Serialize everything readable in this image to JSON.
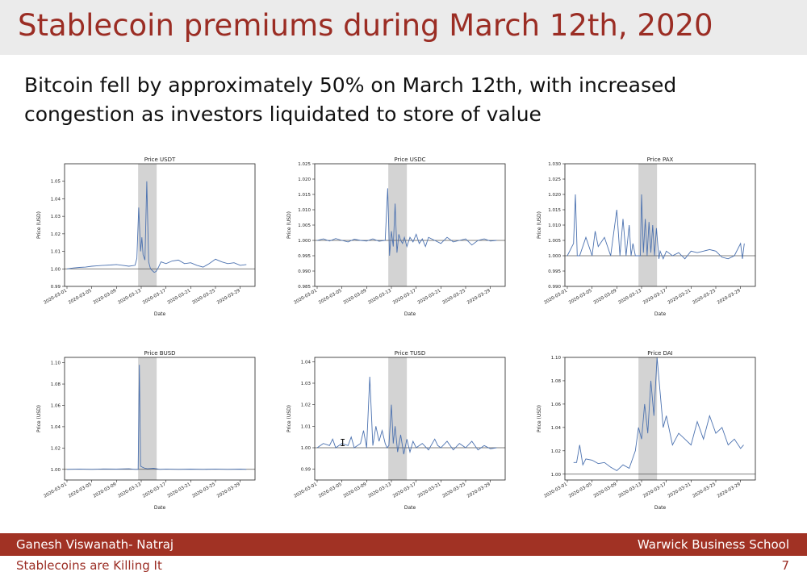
{
  "slide": {
    "title": "Stablecoin premiums during March 12th, 2020",
    "bullet": "Bitcoin fell by approximately 50% on March 12th, with increased congestion as investors liquidated to store of value",
    "footer_author": "Ganesh Viswanath- Natraj",
    "footer_school": "Warwick Business School",
    "footer_topic": "Stablecoins are Killing It",
    "page_number": "7"
  },
  "colors": {
    "accent": "#9b2d24",
    "footer_bg": "#a13224",
    "line": "#4c72b0",
    "shade": "#d3d3d3"
  },
  "chart_data": [
    {
      "type": "line",
      "title": "Price USDT",
      "xlabel": "Date",
      "ylabel": "Price (USD)",
      "ylim": [
        0.99,
        1.06
      ],
      "yticks": [
        "0.99",
        "1.00",
        "1.01",
        "1.02",
        "1.03",
        "1.04",
        "1.05"
      ],
      "xdomain": [
        0,
        30
      ],
      "xticks": [
        {
          "v": 0,
          "l": "2020-03-01"
        },
        {
          "v": 4,
          "l": "2020-03-05"
        },
        {
          "v": 8,
          "l": "2020-03-09"
        },
        {
          "v": 12,
          "l": "2020-03-13"
        },
        {
          "v": 16,
          "l": "2020-03-17"
        },
        {
          "v": 20,
          "l": "2020-03-21"
        },
        {
          "v": 24,
          "l": "2020-03-25"
        },
        {
          "v": 28,
          "l": "2020-03-29"
        }
      ],
      "shaded": [
        11.5,
        14.5
      ],
      "baseline": 1.0,
      "series": [
        {
          "name": "USDT",
          "x": [
            0,
            1,
            2,
            3,
            4,
            5,
            6,
            7,
            8,
            9,
            10,
            11,
            11.3,
            11.6,
            11.9,
            12.1,
            12.3,
            12.6,
            12.9,
            13.2,
            13.5,
            13.8,
            14.1,
            14.4,
            14.8,
            15.2,
            16,
            17,
            18,
            19,
            20,
            21,
            22,
            23,
            24,
            25,
            26,
            27,
            28,
            29
          ],
          "y": [
            1.0,
            1.0005,
            1.0008,
            1.001,
            1.0015,
            1.0018,
            1.002,
            1.0022,
            1.0025,
            1.002,
            1.0015,
            1.002,
            1.006,
            1.035,
            1.01,
            1.018,
            1.008,
            1.005,
            1.05,
            1.004,
            1.0,
            0.999,
            0.998,
            0.9985,
            1.001,
            1.004,
            1.003,
            1.0045,
            1.005,
            1.003,
            1.0035,
            1.002,
            1.001,
            1.003,
            1.0055,
            1.004,
            1.003,
            1.0035,
            1.002,
            1.0025
          ]
        }
      ]
    },
    {
      "type": "line",
      "title": "Price USDC",
      "xlabel": "Date",
      "ylabel": "Price (USD)",
      "ylim": [
        0.985,
        1.025
      ],
      "yticks": [
        "0.985",
        "0.990",
        "0.995",
        "1.000",
        "1.005",
        "1.010",
        "1.015",
        "1.020",
        "1.025"
      ],
      "xdomain": [
        0,
        30
      ],
      "xticks": [
        {
          "v": 0,
          "l": "2020-03-01"
        },
        {
          "v": 4,
          "l": "2020-03-05"
        },
        {
          "v": 8,
          "l": "2020-03-09"
        },
        {
          "v": 12,
          "l": "2020-03-13"
        },
        {
          "v": 16,
          "l": "2020-03-17"
        },
        {
          "v": 20,
          "l": "2020-03-21"
        },
        {
          "v": 24,
          "l": "2020-03-25"
        },
        {
          "v": 28,
          "l": "2020-03-29"
        }
      ],
      "shaded": [
        11.5,
        14.5
      ],
      "baseline": 1.0,
      "series": [
        {
          "name": "USDC",
          "x": [
            0,
            1,
            2,
            3,
            4,
            5,
            6,
            7,
            8,
            9,
            10,
            11,
            11.4,
            11.7,
            12,
            12.3,
            12.6,
            12.9,
            13.2,
            13.5,
            13.8,
            14.1,
            14.5,
            15,
            15.5,
            16,
            16.5,
            17,
            17.5,
            18,
            19,
            20,
            21,
            22,
            23,
            24,
            25,
            26,
            27,
            28,
            29
          ],
          "y": [
            1.0,
            1.0005,
            0.9998,
            1.0006,
            1.0,
            0.9995,
            1.0004,
            1.0,
            0.9998,
            1.0005,
            0.9997,
            1.0,
            1.017,
            0.995,
            1.003,
            0.998,
            1.012,
            0.996,
            1.002,
            1.0,
            0.999,
            1.001,
            0.998,
            1.001,
            0.9995,
            1.002,
            0.999,
            1.0005,
            0.998,
            1.001,
            1.0,
            0.999,
            1.001,
            0.9995,
            1.0,
            1.0005,
            0.9985,
            1.0,
            1.0005,
            0.9998,
            1.0
          ]
        }
      ]
    },
    {
      "type": "line",
      "title": "Price PAX",
      "xlabel": "Date",
      "ylabel": "Price (USD)",
      "ylim": [
        0.99,
        1.03
      ],
      "yticks": [
        "0.990",
        "0.995",
        "1.000",
        "1.005",
        "1.010",
        "1.015",
        "1.020",
        "1.025",
        "1.030"
      ],
      "xdomain": [
        0,
        30
      ],
      "xticks": [
        {
          "v": 0,
          "l": "2020-03-01"
        },
        {
          "v": 4,
          "l": "2020-03-05"
        },
        {
          "v": 8,
          "l": "2020-03-09"
        },
        {
          "v": 12,
          "l": "2020-03-13"
        },
        {
          "v": 16,
          "l": "2020-03-17"
        },
        {
          "v": 20,
          "l": "2020-03-21"
        },
        {
          "v": 24,
          "l": "2020-03-25"
        },
        {
          "v": 28,
          "l": "2020-03-29"
        }
      ],
      "shaded": [
        11.5,
        14.5
      ],
      "baseline": 1.0,
      "series": [
        {
          "name": "PAX",
          "x": [
            0,
            1,
            1.3,
            1.6,
            2,
            3,
            4,
            4.5,
            5,
            6,
            7,
            8,
            8.5,
            9,
            9.5,
            10,
            10.3,
            10.6,
            11,
            11.8,
            12,
            12.3,
            12.6,
            12.9,
            13.2,
            13.5,
            13.8,
            14.1,
            14.4,
            14.8,
            15,
            15.5,
            16,
            17,
            18,
            19,
            20,
            21,
            22,
            23,
            24,
            25,
            26,
            27,
            28,
            28.3,
            28.6
          ],
          "y": [
            1.0,
            1.004,
            1.02,
            1.0,
            1.0,
            1.006,
            1.0,
            1.008,
            1.003,
            1.006,
            1.0,
            1.015,
            1.0,
            1.012,
            1.0,
            1.01,
            1.0,
            1.004,
            1.0,
            1.0,
            1.02,
            1.001,
            1.012,
            1.0,
            1.011,
            1.001,
            1.01,
            1.0,
            1.009,
            0.999,
            1.0015,
            0.999,
            1.0015,
            1.0,
            1.001,
            0.999,
            1.0015,
            1.001,
            1.0015,
            1.002,
            1.0015,
            0.9995,
            0.999,
            1.0,
            1.004,
            0.999,
            1.004
          ]
        }
      ]
    },
    {
      "type": "line",
      "title": "Price BUSD",
      "xlabel": "Date",
      "ylabel": "Price (USD)",
      "ylim": [
        0.99,
        1.105
      ],
      "yticks": [
        "1.00",
        "1.02",
        "1.04",
        "1.06",
        "1.08",
        "1.10"
      ],
      "xdomain": [
        0,
        30
      ],
      "xticks": [
        {
          "v": 0,
          "l": "2020-03-01"
        },
        {
          "v": 4,
          "l": "2020-03-05"
        },
        {
          "v": 8,
          "l": "2020-03-09"
        },
        {
          "v": 12,
          "l": "2020-03-13"
        },
        {
          "v": 16,
          "l": "2020-03-17"
        },
        {
          "v": 20,
          "l": "2020-03-21"
        },
        {
          "v": 24,
          "l": "2020-03-25"
        },
        {
          "v": 28,
          "l": "2020-03-29"
        }
      ],
      "shaded": [
        11.5,
        14.5
      ],
      "baseline": 1.0,
      "series": [
        {
          "name": "BUSD",
          "x": [
            0,
            2,
            4,
            6,
            8,
            10,
            11,
            11.5,
            11.7,
            11.9,
            12.2,
            12.6,
            13,
            14,
            15,
            16,
            18,
            20,
            22,
            24,
            26,
            28,
            29
          ],
          "y": [
            1.0,
            1.0003,
            1.0,
            1.0004,
            1.0002,
            1.0005,
            1.0,
            1.0,
            1.098,
            1.003,
            1.002,
            1.001,
            1.0005,
            1.001,
            1.0,
            1.0003,
            1.0,
            1.0002,
            1.0,
            1.0003,
            1.0,
            1.0002,
            1.0
          ]
        }
      ]
    },
    {
      "type": "line",
      "title": "Price TUSD",
      "xlabel": "Date",
      "ylabel": "Price (USD)",
      "ylim": [
        0.985,
        1.042
      ],
      "yticks": [
        "0.99",
        "1.00",
        "1.01",
        "1.02",
        "1.03",
        "1.04"
      ],
      "xdomain": [
        0,
        30
      ],
      "xticks": [
        {
          "v": 0,
          "l": "2020-03-01"
        },
        {
          "v": 4,
          "l": "2020-03-05"
        },
        {
          "v": 8,
          "l": "2020-03-09"
        },
        {
          "v": 12,
          "l": "2020-03-13"
        },
        {
          "v": 16,
          "l": "2020-03-17"
        },
        {
          "v": 20,
          "l": "2020-03-21"
        },
        {
          "v": 24,
          "l": "2020-03-25"
        },
        {
          "v": 28,
          "l": "2020-03-29"
        }
      ],
      "shaded": [
        11.5,
        14.5
      ],
      "baseline": 1.0,
      "series": [
        {
          "name": "TUSD",
          "x": [
            0,
            1,
            2,
            2.5,
            3,
            4,
            5,
            5.5,
            6,
            7,
            7.5,
            8,
            8.5,
            9,
            9.5,
            10,
            10.5,
            11,
            11.3,
            11.6,
            12,
            12.3,
            12.6,
            13,
            13.5,
            14,
            14.5,
            15,
            15.5,
            16,
            17,
            18,
            19,
            19.5,
            20,
            21,
            22,
            23,
            24,
            25,
            26,
            27,
            28,
            29
          ],
          "y": [
            1.0,
            1.002,
            1.001,
            1.004,
            1.0,
            1.002,
            1.001,
            1.005,
            1.0,
            1.002,
            1.008,
            1.0,
            1.033,
            1.001,
            1.01,
            1.003,
            1.008,
            1.002,
            1.0,
            1.001,
            1.02,
            1.002,
            1.01,
            0.998,
            1.006,
            0.997,
            1.004,
            0.998,
            1.003,
            1.0,
            1.002,
            0.999,
            1.004,
            1.001,
            1.0,
            1.003,
            0.999,
            1.002,
            1.0,
            1.003,
            0.999,
            1.001,
            0.9995,
            1.0
          ]
        }
      ]
    },
    {
      "type": "line",
      "title": "Price DAI",
      "xlabel": "Date",
      "ylabel": "Price (USD)",
      "ylim": [
        0.995,
        1.1
      ],
      "yticks": [
        "1.00",
        "1.02",
        "1.04",
        "1.06",
        "1.08",
        "1.10"
      ],
      "xdomain": [
        0,
        30
      ],
      "xticks": [
        {
          "v": 0,
          "l": "2020-03-01"
        },
        {
          "v": 4,
          "l": "2020-03-05"
        },
        {
          "v": 8,
          "l": "2020-03-09"
        },
        {
          "v": 12,
          "l": "2020-03-13"
        },
        {
          "v": 16,
          "l": "2020-03-17"
        },
        {
          "v": 20,
          "l": "2020-03-21"
        },
        {
          "v": 24,
          "l": "2020-03-25"
        },
        {
          "v": 28,
          "l": "2020-03-29"
        }
      ],
      "shaded": [
        11.5,
        14.5
      ],
      "baseline": 1.0,
      "series": [
        {
          "name": "DAI",
          "x": [
            1,
            1.5,
            2,
            2.5,
            3,
            4,
            5,
            6,
            7,
            8,
            9,
            10,
            11,
            11.5,
            12,
            12.5,
            13,
            13.5,
            14,
            14.5,
            15,
            15.5,
            16,
            17,
            18,
            19,
            20,
            21,
            22,
            23,
            24,
            25,
            26,
            27,
            28,
            28.5
          ],
          "y": [
            1.01,
            1.01,
            1.025,
            1.008,
            1.013,
            1.012,
            1.009,
            1.01,
            1.006,
            1.003,
            1.008,
            1.005,
            1.02,
            1.04,
            1.03,
            1.06,
            1.035,
            1.08,
            1.05,
            1.1,
            1.07,
            1.04,
            1.05,
            1.025,
            1.035,
            1.03,
            1.025,
            1.045,
            1.03,
            1.05,
            1.035,
            1.04,
            1.025,
            1.03,
            1.022,
            1.025
          ]
        }
      ]
    }
  ]
}
